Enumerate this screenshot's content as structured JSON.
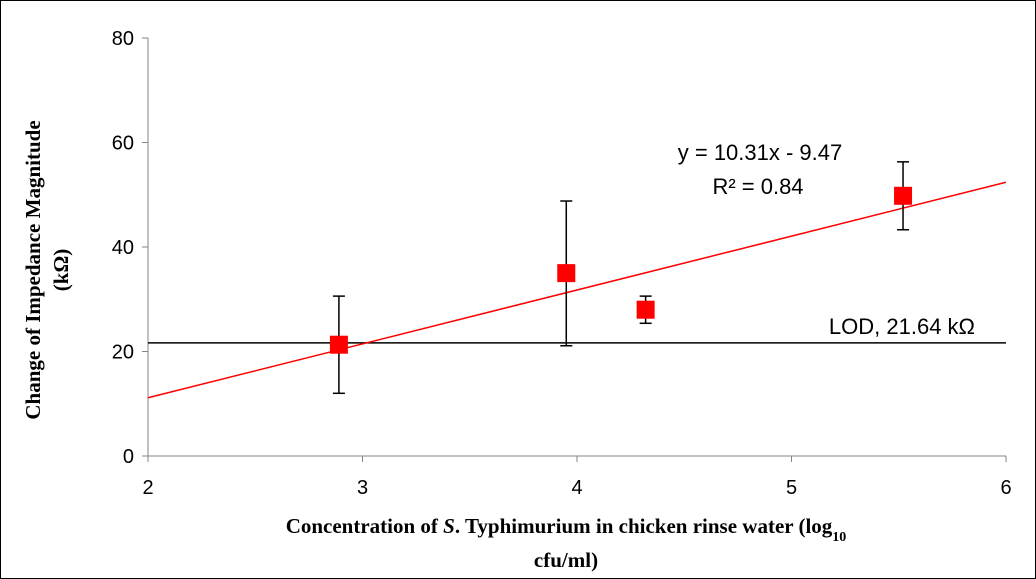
{
  "chart_data": {
    "type": "scatter",
    "xlabel_line1": "Concentration of",
    "xlabel_italic": "S",
    "xlabel_line1b": ". Typhimurium in chicken rinse water (log",
    "xlabel_sub": "10",
    "xlabel_line2": "cfu/ml)",
    "ylabel_line1": "Change of Impedance Magnitude",
    "ylabel_line2": "(kΩ)",
    "xlim": [
      2,
      6
    ],
    "ylim": [
      0,
      80
    ],
    "xticks": [
      "2",
      "3",
      "4",
      "5",
      "6"
    ],
    "yticks": [
      "0",
      "20",
      "40",
      "60",
      "80"
    ],
    "grid": false,
    "points": [
      {
        "x": 2.89,
        "y": 21.3,
        "err_low": 12.0,
        "err_high": 30.6
      },
      {
        "x": 3.95,
        "y": 35.0,
        "err_low": 21.1,
        "err_high": 48.8
      },
      {
        "x": 4.32,
        "y": 28.0,
        "err_low": 25.4,
        "err_high": 30.6
      },
      {
        "x": 5.52,
        "y": 49.8,
        "err_low": 43.3,
        "err_high": 56.3
      }
    ],
    "trendline": {
      "slope": 10.31,
      "intercept": -9.47,
      "x_start": 2,
      "x_end": 6
    },
    "equation_text": "y = 10.31x - 9.47",
    "r2_text": "R² = 0.84",
    "lod": {
      "value": 21.64,
      "label": "LOD, 21.64 kΩ"
    },
    "colors": {
      "marker": "#ff0000",
      "trendline": "#ff0000",
      "lod_line": "#000000",
      "error_bar": "#000000"
    }
  }
}
